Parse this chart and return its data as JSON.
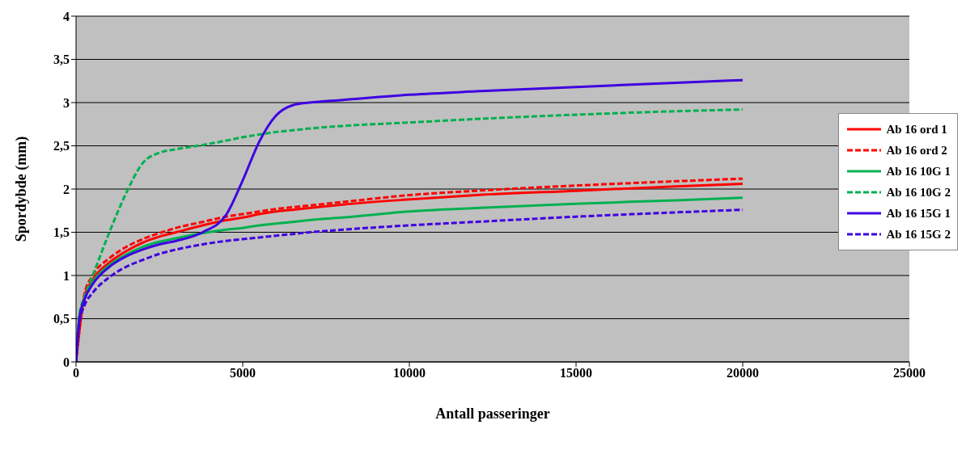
{
  "chart_data": {
    "type": "line",
    "xlabel": "Antall passeringer",
    "ylabel": "Spordybde (mm)",
    "x": [
      0,
      100,
      250,
      500,
      1000,
      1500,
      2000,
      2500,
      3000,
      3800,
      4500,
      5000,
      5500,
      6000,
      6500,
      7000,
      8000,
      10000,
      12000,
      15000,
      18000,
      20000
    ],
    "series": [
      {
        "name": "Ab 16 ord 1",
        "color": "#ff0000",
        "line_style": "solid",
        "values": [
          0,
          null,
          0.75,
          0.95,
          1.15,
          1.28,
          1.38,
          1.45,
          1.5,
          1.58,
          1.64,
          1.67,
          1.71,
          1.74,
          1.76,
          1.78,
          1.82,
          1.88,
          1.93,
          1.98,
          2.03,
          2.06
        ]
      },
      {
        "name": "Ab 16 ord 2",
        "color": "#ff0000",
        "line_style": "dashed",
        "values": [
          0,
          null,
          0.78,
          1.0,
          1.2,
          1.33,
          1.42,
          1.49,
          1.55,
          1.62,
          1.68,
          1.71,
          1.74,
          1.77,
          1.79,
          1.81,
          1.85,
          1.93,
          1.98,
          2.04,
          2.09,
          2.12
        ]
      },
      {
        "name": "Ab 16 10G 1",
        "color": "#00b050",
        "line_style": "solid",
        "values": [
          0,
          0.5,
          0.72,
          0.92,
          1.12,
          1.24,
          1.33,
          1.39,
          1.43,
          1.49,
          1.53,
          1.55,
          1.58,
          1.6,
          1.62,
          1.64,
          1.67,
          1.74,
          1.78,
          1.83,
          1.87,
          1.9
        ]
      },
      {
        "name": "Ab 16 10G 2",
        "color": "#00b050",
        "line_style": "dashed",
        "values": [
          0,
          0.55,
          0.75,
          1.0,
          1.5,
          1.95,
          2.3,
          2.42,
          2.46,
          2.51,
          2.56,
          2.6,
          2.63,
          2.66,
          2.68,
          2.7,
          2.73,
          2.77,
          2.81,
          2.86,
          2.9,
          2.92
        ]
      },
      {
        "name": "Ab 16 15G 1",
        "color": "#3f00e0",
        "line_style": "solid",
        "values": [
          0,
          0.5,
          0.72,
          0.9,
          1.1,
          1.22,
          1.3,
          1.36,
          1.4,
          1.5,
          1.7,
          2.1,
          2.55,
          2.85,
          2.97,
          3.0,
          3.03,
          3.09,
          3.13,
          3.18,
          3.23,
          3.26
        ]
      },
      {
        "name": "Ab 16 15G 2",
        "color": "#3f00e0",
        "line_style": "dashed",
        "values": [
          0,
          0.45,
          0.65,
          0.8,
          0.98,
          1.1,
          1.18,
          1.25,
          1.3,
          1.36,
          1.4,
          1.42,
          1.44,
          1.46,
          1.48,
          1.5,
          1.53,
          1.58,
          1.62,
          1.68,
          1.73,
          1.76
        ]
      }
    ],
    "xlim": [
      0,
      25000
    ],
    "xticks": [
      0,
      5000,
      10000,
      15000,
      20000,
      25000
    ],
    "ylim": [
      0,
      4
    ],
    "yticks": [
      0,
      {
        "value": 0.5,
        "label": "0,5"
      },
      1,
      {
        "value": 1.5,
        "label": "1,5"
      },
      2,
      {
        "value": 2.5,
        "label": "2,5"
      },
      3,
      {
        "value": 3.5,
        "label": "3,5"
      },
      4
    ],
    "grid": "y",
    "legend": "right",
    "marker": "none"
  }
}
